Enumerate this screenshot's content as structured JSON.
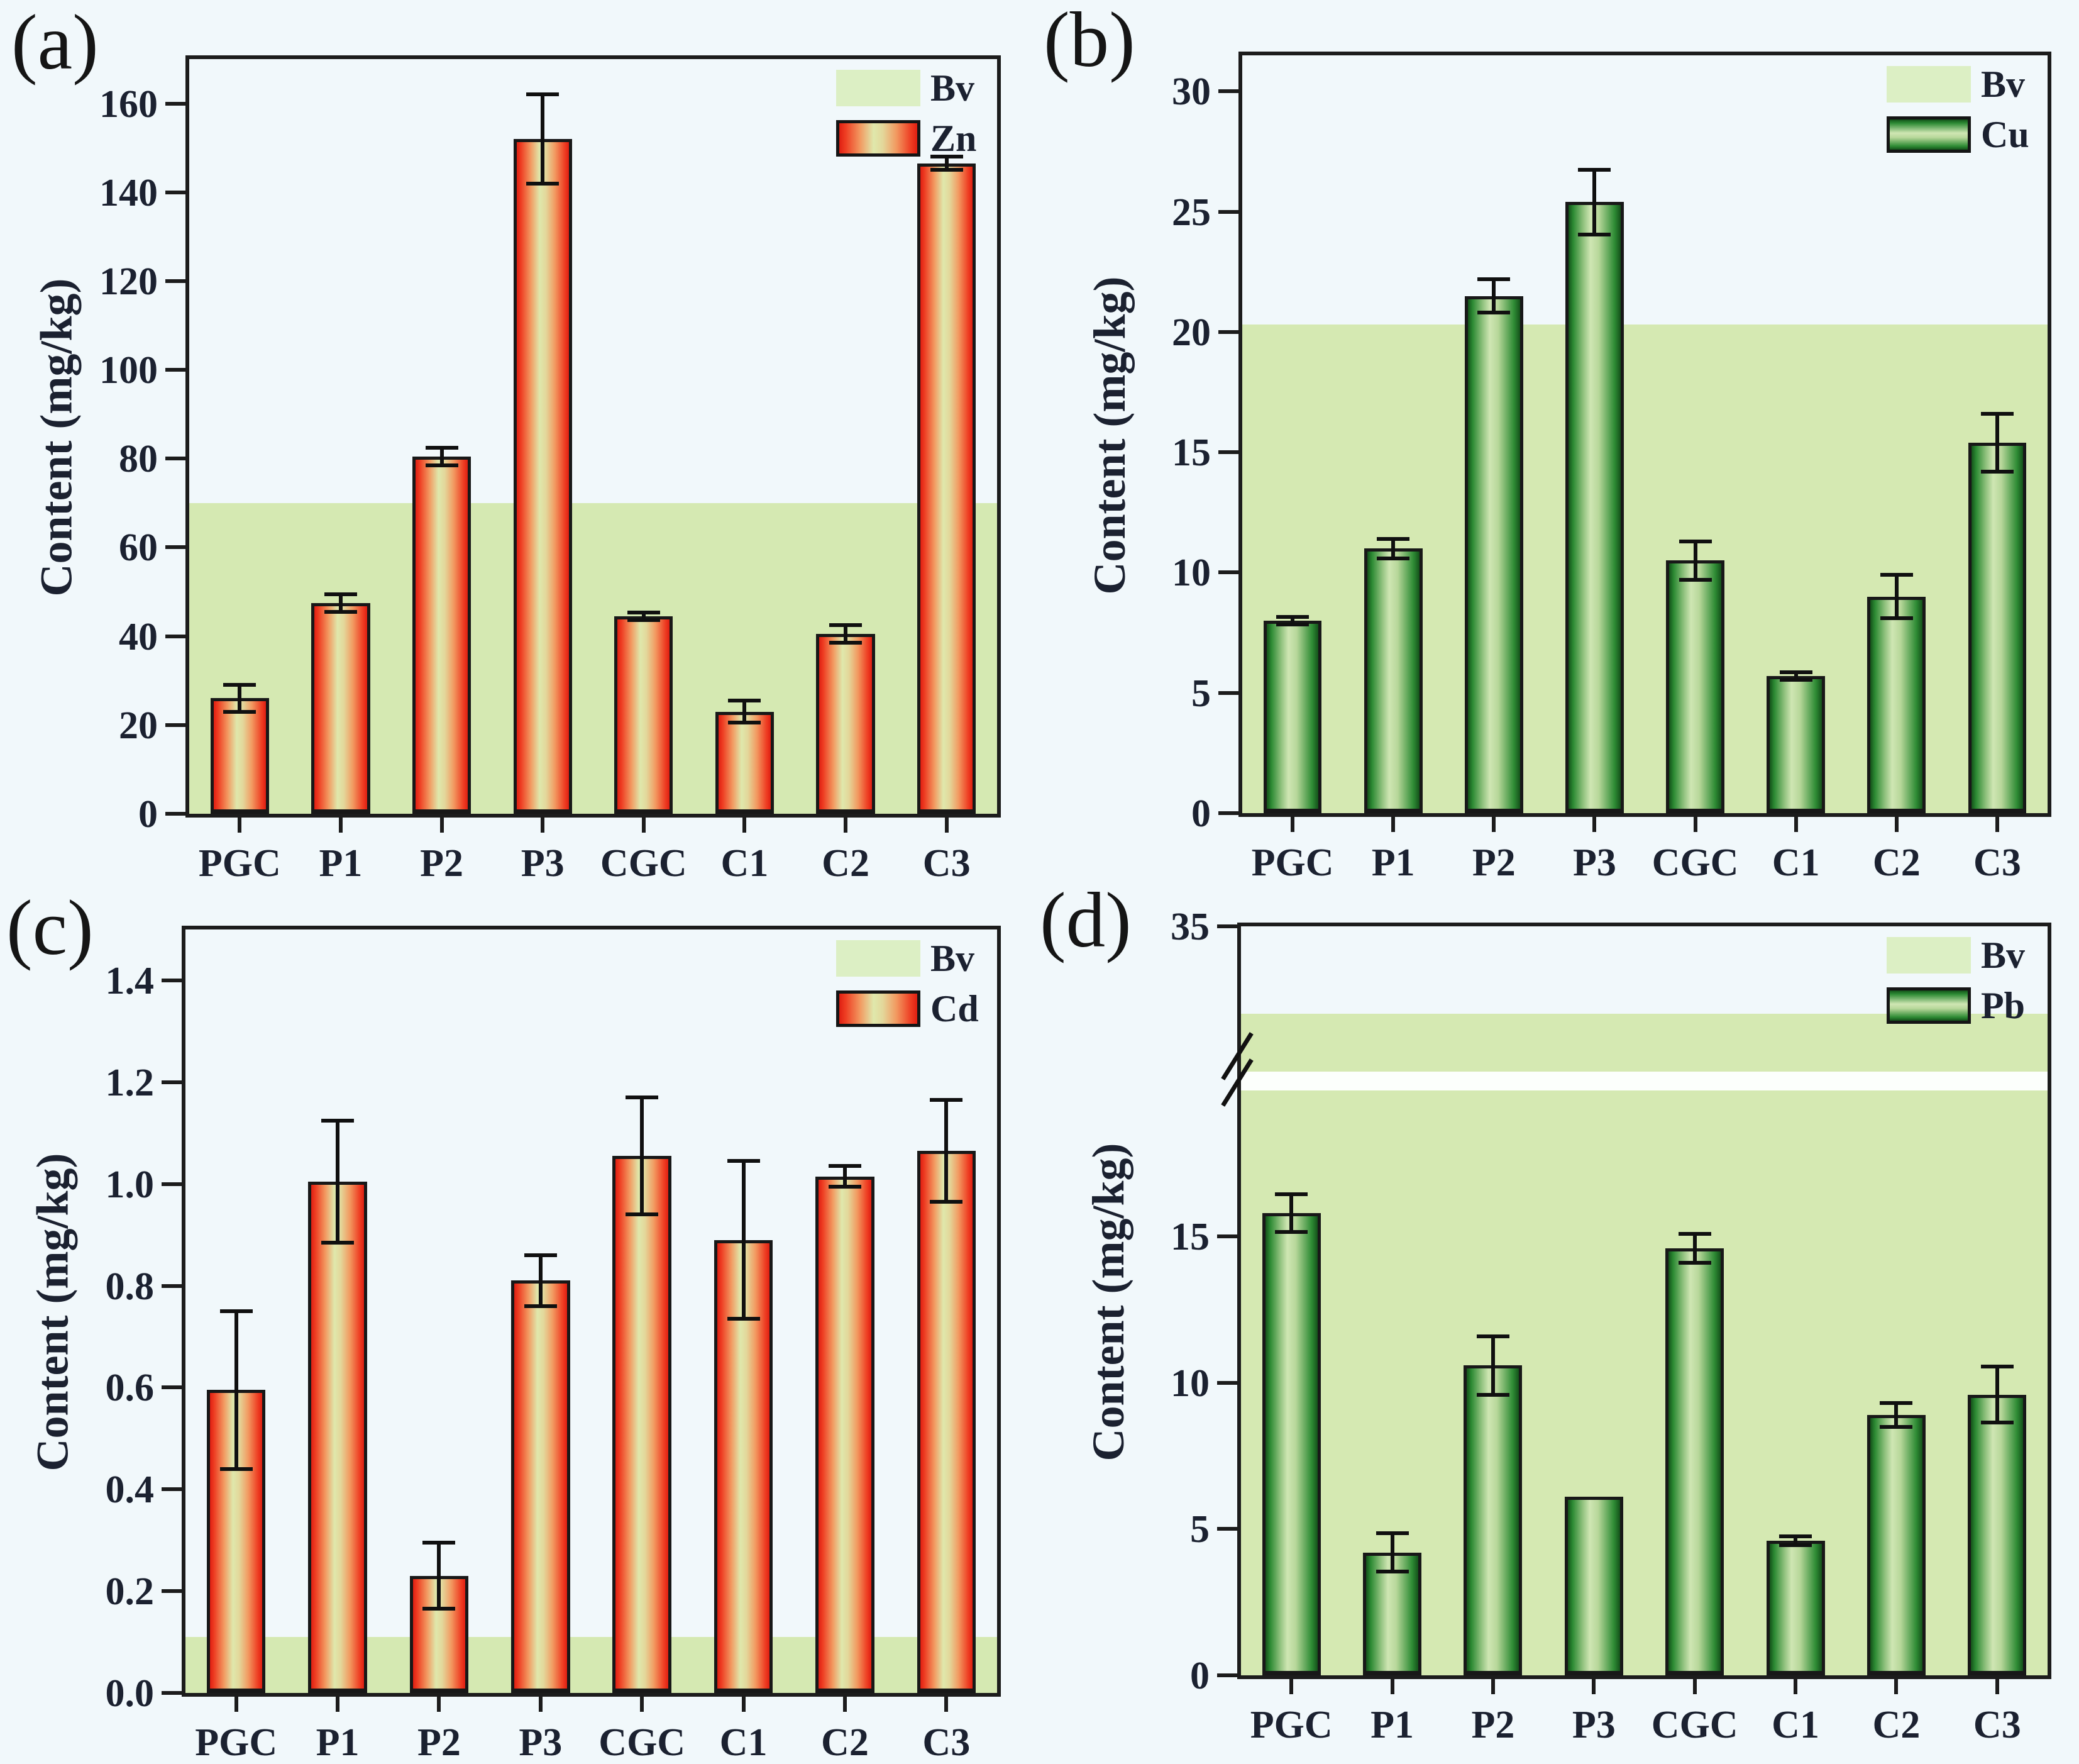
{
  "figure": {
    "ylabel": "Content (mg/kg)",
    "categories": [
      "PGC",
      "P1",
      "P2",
      "P3",
      "CGC",
      "C1",
      "C2",
      "C3"
    ]
  },
  "colors": {
    "background": "#f1f8fb",
    "axis": "#1c1c1c",
    "text": "#1b2130",
    "bv_fill": "#d5e9b2",
    "bv_legend_fill": "#dcefc4",
    "zn_cd_bar_edge": "#e8281a",
    "zn_cd_bar_center": "#dfe7ac",
    "cu_pb_bar_edge": "#14521a",
    "cu_pb_bar_center": "#cde4b2",
    "error_bar": "#111111",
    "break_band": "#fcfffc"
  },
  "chart_data": [
    {
      "type": "bar",
      "panel": "(a)",
      "metal": "Zn",
      "ylabel": "Content (mg/kg)",
      "categories": [
        "PGC",
        "P1",
        "P2",
        "P3",
        "CGC",
        "C1",
        "C2",
        "C3"
      ],
      "values": [
        26,
        47.5,
        80.5,
        152,
        44.5,
        23,
        40.5,
        146.5
      ],
      "errors": [
        3,
        2,
        2,
        10,
        0.8,
        2.5,
        2,
        1.5
      ],
      "bv": 70,
      "ylim": [
        0,
        170
      ],
      "yticks": [
        {
          "v": 0,
          "label": "0"
        },
        {
          "v": 20,
          "label": "20"
        },
        {
          "v": 40,
          "label": "40"
        },
        {
          "v": 60,
          "label": "60"
        },
        {
          "v": 80,
          "label": "80"
        },
        {
          "v": 100,
          "label": "100"
        },
        {
          "v": 120,
          "label": "120"
        },
        {
          "v": 140,
          "label": "140"
        },
        {
          "v": 160,
          "label": "160"
        }
      ],
      "legend": [
        {
          "key": "bv",
          "label": "Bv"
        },
        {
          "key": "series",
          "label": "Zn"
        }
      ],
      "legend_position": "top-right",
      "bar_style": "red",
      "grid": false
    },
    {
      "type": "bar",
      "panel": "(b)",
      "metal": "Cu",
      "ylabel": "Content (mg/kg)",
      "categories": [
        "PGC",
        "P1",
        "P2",
        "P3",
        "CGC",
        "C1",
        "C2",
        "C3"
      ],
      "values": [
        8,
        11,
        21.5,
        25.4,
        10.5,
        5.7,
        9,
        15.4
      ],
      "errors": [
        0.15,
        0.4,
        0.7,
        1.35,
        0.8,
        0.15,
        0.9,
        1.2
      ],
      "bv": 20.3,
      "ylim": [
        0,
        31.5
      ],
      "yticks": [
        {
          "v": 0,
          "label": "0"
        },
        {
          "v": 5,
          "label": "5"
        },
        {
          "v": 10,
          "label": "10"
        },
        {
          "v": 15,
          "label": "15"
        },
        {
          "v": 20,
          "label": "20"
        },
        {
          "v": 25,
          "label": "25"
        },
        {
          "v": 30,
          "label": "30"
        }
      ],
      "legend": [
        {
          "key": "bv",
          "label": "Bv"
        },
        {
          "key": "series",
          "label": "Cu"
        }
      ],
      "legend_position": "top-right",
      "bar_style": "green",
      "grid": false
    },
    {
      "type": "bar",
      "panel": "(c)",
      "metal": "Cd",
      "ylabel": "Content (mg/kg)",
      "categories": [
        "PGC",
        "P1",
        "P2",
        "P3",
        "CGC",
        "C1",
        "C2",
        "C3"
      ],
      "values": [
        0.595,
        1.005,
        0.23,
        0.81,
        1.055,
        0.89,
        1.015,
        1.065
      ],
      "errors": [
        0.155,
        0.12,
        0.065,
        0.05,
        0.115,
        0.155,
        0.02,
        0.1
      ],
      "bv": 0.11,
      "ylim": [
        0,
        1.5
      ],
      "yticks": [
        {
          "v": 0,
          "label": "0.0"
        },
        {
          "v": 0.2,
          "label": "0.2"
        },
        {
          "v": 0.4,
          "label": "0.4"
        },
        {
          "v": 0.6,
          "label": "0.6"
        },
        {
          "v": 0.8,
          "label": "0.8"
        },
        {
          "v": 1.0,
          "label": "1.0"
        },
        {
          "v": 1.2,
          "label": "1.2"
        },
        {
          "v": 1.4,
          "label": "1.4"
        }
      ],
      "legend": [
        {
          "key": "bv",
          "label": "Bv"
        },
        {
          "key": "series",
          "label": "Cd"
        }
      ],
      "legend_position": "top-right",
      "bar_style": "red",
      "grid": false
    },
    {
      "type": "bar",
      "panel": "(d)",
      "metal": "Pb",
      "ylabel": "Content (mg/kg)",
      "categories": [
        "PGC",
        "P1",
        "P2",
        "P3",
        "CGC",
        "C1",
        "C2",
        "C3"
      ],
      "values": [
        15.8,
        4.2,
        10.6,
        6.1,
        14.6,
        4.6,
        8.9,
        9.6
      ],
      "errors": [
        0.65,
        0.65,
        1.0,
        0,
        0.5,
        0.15,
        0.4,
        0.95
      ],
      "bv": 32,
      "ylim": [
        0,
        35
      ],
      "ybreak": {
        "lower_max": 20,
        "upper_min": 30,
        "note": "y-axis break between 20 and 30 mg/kg"
      },
      "yticks": [
        {
          "v": 0,
          "label": "0"
        },
        {
          "v": 5,
          "label": "5"
        },
        {
          "v": 10,
          "label": "10"
        },
        {
          "v": 15,
          "label": "15"
        },
        {
          "v": 35,
          "label": "35"
        }
      ],
      "legend": [
        {
          "key": "bv",
          "label": "Bv"
        },
        {
          "key": "series",
          "label": "Pb"
        }
      ],
      "legend_position": "top-right",
      "bar_style": "green",
      "grid": false
    }
  ]
}
